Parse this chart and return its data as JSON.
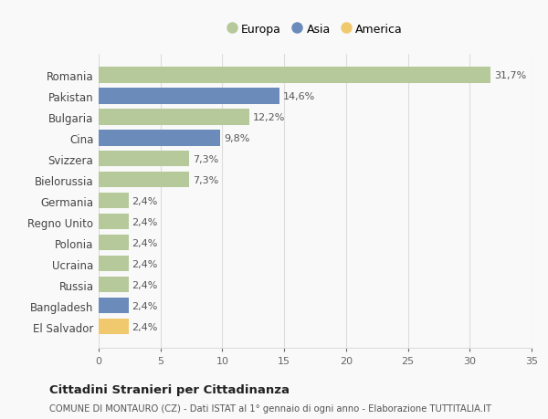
{
  "categories": [
    "Romania",
    "Pakistan",
    "Bulgaria",
    "Cina",
    "Svizzera",
    "Bielorussia",
    "Germania",
    "Regno Unito",
    "Polonia",
    "Ucraina",
    "Russia",
    "Bangladesh",
    "El Salvador"
  ],
  "values": [
    31.7,
    14.6,
    12.2,
    9.8,
    7.3,
    7.3,
    2.4,
    2.4,
    2.4,
    2.4,
    2.4,
    2.4,
    2.4
  ],
  "labels": [
    "31,7%",
    "14,6%",
    "12,2%",
    "9,8%",
    "7,3%",
    "7,3%",
    "2,4%",
    "2,4%",
    "2,4%",
    "2,4%",
    "2,4%",
    "2,4%",
    "2,4%"
  ],
  "continents": [
    "Europa",
    "Asia",
    "Europa",
    "Asia",
    "Europa",
    "Europa",
    "Europa",
    "Europa",
    "Europa",
    "Europa",
    "Europa",
    "Asia",
    "America"
  ],
  "continent_colors": {
    "Europa": "#b5c99a",
    "Asia": "#6b8cba",
    "America": "#f0c96e"
  },
  "legend_items": [
    "Europa",
    "Asia",
    "America"
  ],
  "title1": "Cittadini Stranieri per Cittadinanza",
  "title2": "COMUNE DI MONTAURO (CZ) - Dati ISTAT al 1° gennaio di ogni anno - Elaborazione TUTTITALIA.IT",
  "xlim": [
    0,
    35
  ],
  "xticks": [
    0,
    5,
    10,
    15,
    20,
    25,
    30,
    35
  ],
  "background_color": "#f9f9f9",
  "grid_color": "#dddddd"
}
